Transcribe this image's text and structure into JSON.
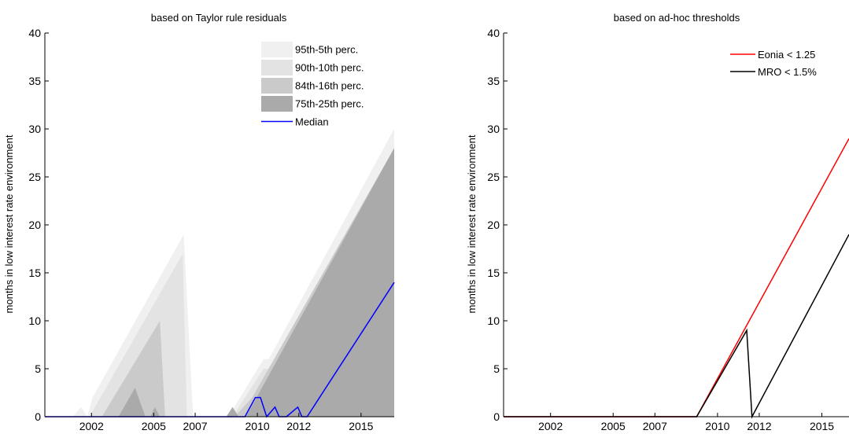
{
  "chart_data": [
    {
      "type": "area",
      "title": "based on Taylor rule residuals",
      "ylabel": "months in low interest rate environment",
      "xlabel": "",
      "xlim": [
        1999.75,
        2016.6
      ],
      "ylim": [
        0,
        40
      ],
      "x_ticks": [
        2002,
        2005,
        2007,
        2010,
        2012,
        2015
      ],
      "x_tick_labels": [
        "2002",
        "2005",
        "2007",
        "2010",
        "2012",
        "2015"
      ],
      "y_ticks": [
        0,
        5,
        10,
        15,
        20,
        25,
        30,
        35,
        40
      ],
      "legend_position": "top-right",
      "legend": [
        "95th-5th perc.",
        "90th-10th perc.",
        "84th-16th perc.",
        "75th-25th perc.",
        "Median"
      ],
      "bands": [
        {
          "name": "95th-5th perc.",
          "color": "#f0f0f0",
          "x": [
            2001.1,
            2001.5,
            2001.8,
            2002.05,
            2006.45,
            2006.9,
            2008.6,
            2010.3,
            2010.55,
            2016.6
          ],
          "y": [
            0,
            1,
            0,
            2,
            19,
            0,
            0,
            6,
            6,
            30
          ]
        },
        {
          "name": "90th-10th perc.",
          "color": "#e3e3e3",
          "x": [
            2001.9,
            2006.4,
            2006.6,
            2008.8,
            2010.3,
            2010.55,
            2016.6
          ],
          "y": [
            0,
            17,
            0,
            0,
            5,
            5,
            28
          ]
        },
        {
          "name": "84th-16th perc.",
          "color": "#cacaca",
          "x": [
            2002.5,
            2005.3,
            2005.55,
            2008.9,
            2009.75,
            2016.6
          ],
          "y": [
            0,
            10,
            0,
            0,
            2,
            28
          ]
        },
        {
          "name": "75th-25th perc.",
          "color": "#aaaaaa",
          "x": [
            2003.3,
            2004.1,
            2004.6,
            2004.85,
            2005.05,
            2005.3,
            2008.5,
            2008.8,
            2009.1,
            2009.45,
            2016.6
          ],
          "y": [
            0,
            3,
            0,
            0,
            1,
            0,
            0,
            1,
            0,
            0,
            28
          ]
        }
      ],
      "series": [
        {
          "name": "Median",
          "color": "#0000ff",
          "x": [
            1999.75,
            2009.4,
            2009.9,
            2010.15,
            2010.45,
            2010.85,
            2011.05,
            2011.4,
            2011.95,
            2012.15,
            2012.4,
            2016.6
          ],
          "y": [
            0,
            0,
            2,
            2,
            0,
            1,
            0,
            0,
            1,
            0,
            0,
            14
          ]
        }
      ]
    },
    {
      "type": "line",
      "title": "based on ad-hoc thresholds",
      "ylabel": "months in low interest rate environment",
      "xlabel": "",
      "xlim": [
        1999.75,
        2016.3
      ],
      "ylim": [
        0,
        40
      ],
      "x_ticks": [
        2002,
        2005,
        2007,
        2010,
        2012,
        2015
      ],
      "x_tick_labels": [
        "2002",
        "2005",
        "2007",
        "2010",
        "2012",
        "2015"
      ],
      "y_ticks": [
        0,
        5,
        10,
        15,
        20,
        25,
        30,
        35,
        40
      ],
      "legend_position": "top-right",
      "legend": [
        "Eonia < 1.25",
        "MRO < 1.5%"
      ],
      "series": [
        {
          "name": "Eonia < 1.25",
          "color": "#ff0000",
          "x": [
            1999.75,
            2009.0,
            2016.3
          ],
          "y": [
            0,
            0,
            29
          ]
        },
        {
          "name": "MRO < 1.5%",
          "color": "#000000",
          "x": [
            1999.75,
            2009.0,
            2011.4,
            2011.65,
            2016.3
          ],
          "y": [
            0,
            0,
            9,
            0,
            19
          ]
        }
      ]
    }
  ]
}
